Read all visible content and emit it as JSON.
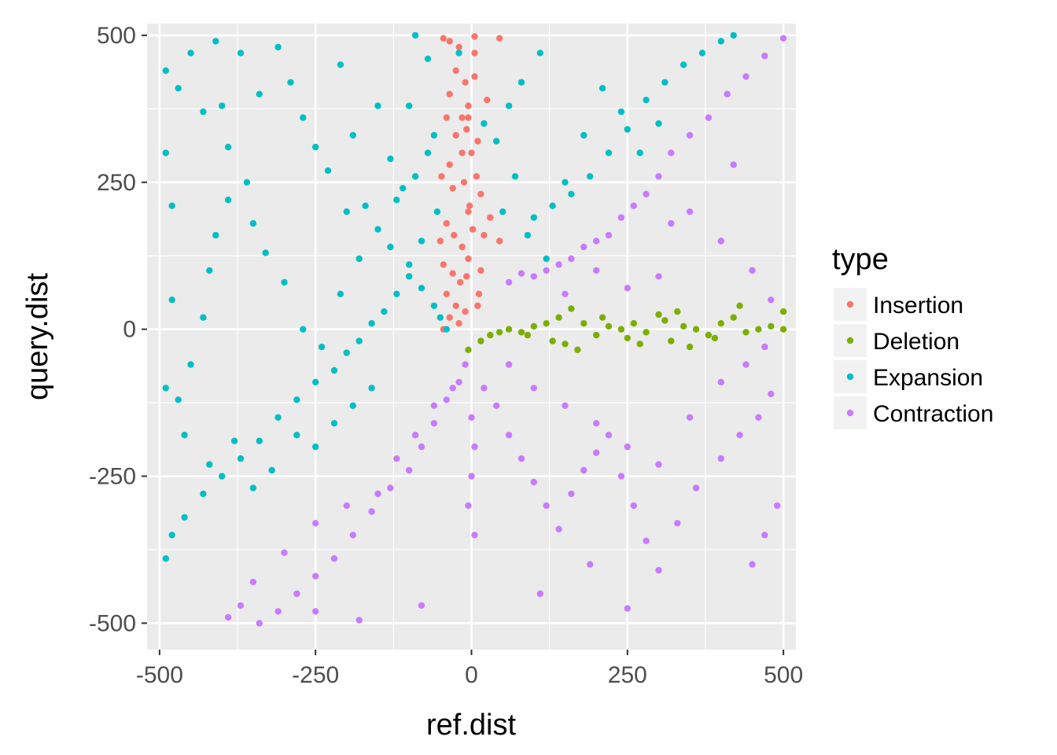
{
  "chart_data": {
    "type": "scatter",
    "title": "",
    "xlabel": "ref.dist",
    "ylabel": "query.dist",
    "xlim": [
      -520,
      520
    ],
    "ylim": [
      -545,
      520
    ],
    "x_ticks": [
      -500,
      -250,
      0,
      250,
      500
    ],
    "y_ticks": [
      -500,
      -250,
      0,
      250,
      500
    ],
    "x_tick_labels": [
      "-500",
      "-250",
      "0",
      "250",
      "500"
    ],
    "y_tick_labels": [
      "-500",
      "-250",
      "0",
      "250",
      "500"
    ],
    "grid": true,
    "panel_background": "#ebebeb",
    "legend": {
      "title": "type",
      "position": "right"
    },
    "series": [
      {
        "name": "Insertion",
        "color": "#f8766d",
        "points": [
          [
            -45,
            495
          ],
          [
            -35,
            490
          ],
          [
            -20,
            480
          ],
          [
            5,
            498
          ],
          [
            45,
            495
          ],
          [
            -25,
            440
          ],
          [
            -35,
            400
          ],
          [
            -10,
            420
          ],
          [
            5,
            430
          ],
          [
            -5,
            380
          ],
          [
            -40,
            360
          ],
          [
            -25,
            330
          ],
          [
            -8,
            340
          ],
          [
            10,
            320
          ],
          [
            -15,
            300
          ],
          [
            -35,
            280
          ],
          [
            -48,
            260
          ],
          [
            -30,
            240
          ],
          [
            -12,
            250
          ],
          [
            15,
            230
          ],
          [
            -5,
            200
          ],
          [
            -40,
            180
          ],
          [
            -28,
            160
          ],
          [
            -50,
            150
          ],
          [
            -15,
            140
          ],
          [
            20,
            160
          ],
          [
            45,
            150
          ],
          [
            30,
            190
          ],
          [
            -5,
            120
          ],
          [
            -45,
            110
          ],
          [
            -30,
            95
          ],
          [
            -18,
            80
          ],
          [
            -40,
            60
          ],
          [
            -25,
            40
          ],
          [
            -10,
            30
          ],
          [
            -35,
            20
          ],
          [
            -20,
            10
          ],
          [
            -45,
            0
          ],
          [
            10,
            40
          ],
          [
            15,
            100
          ],
          [
            5,
            470
          ],
          [
            -5,
            360
          ],
          [
            0,
            300
          ],
          [
            8,
            260
          ],
          [
            -3,
            210
          ],
          [
            2,
            170
          ],
          [
            -8,
            90
          ],
          [
            12,
            60
          ],
          [
            -15,
            360
          ],
          [
            25,
            390
          ]
        ]
      },
      {
        "name": "Deletion",
        "color": "#7cae00",
        "points": [
          [
            -5,
            -35
          ],
          [
            15,
            -20
          ],
          [
            30,
            -10
          ],
          [
            45,
            -5
          ],
          [
            60,
            0
          ],
          [
            80,
            -5
          ],
          [
            100,
            5
          ],
          [
            120,
            10
          ],
          [
            140,
            20
          ],
          [
            160,
            35
          ],
          [
            180,
            10
          ],
          [
            200,
            -10
          ],
          [
            220,
            5
          ],
          [
            240,
            0
          ],
          [
            260,
            10
          ],
          [
            280,
            -5
          ],
          [
            300,
            25
          ],
          [
            320,
            -20
          ],
          [
            340,
            5
          ],
          [
            360,
            0
          ],
          [
            380,
            -10
          ],
          [
            400,
            10
          ],
          [
            420,
            20
          ],
          [
            440,
            -5
          ],
          [
            460,
            0
          ],
          [
            480,
            5
          ],
          [
            500,
            30
          ],
          [
            500,
            0
          ],
          [
            130,
            -20
          ],
          [
            250,
            -15
          ],
          [
            310,
            15
          ],
          [
            350,
            -30
          ],
          [
            150,
            -25
          ],
          [
            90,
            -10
          ],
          [
            170,
            -35
          ],
          [
            210,
            20
          ],
          [
            270,
            -25
          ],
          [
            330,
            30
          ],
          [
            390,
            -15
          ],
          [
            430,
            40
          ]
        ]
      },
      {
        "name": "Expansion",
        "color": "#00bfc4",
        "points": [
          [
            -490,
            440
          ],
          [
            -480,
            210
          ],
          [
            -490,
            300
          ],
          [
            -470,
            410
          ],
          [
            -450,
            470
          ],
          [
            -430,
            370
          ],
          [
            -410,
            490
          ],
          [
            -400,
            380
          ],
          [
            -390,
            310
          ],
          [
            -370,
            470
          ],
          [
            -350,
            180
          ],
          [
            -340,
            400
          ],
          [
            -310,
            480
          ],
          [
            -290,
            420
          ],
          [
            -270,
            360
          ],
          [
            -250,
            310
          ],
          [
            -230,
            270
          ],
          [
            -210,
            450
          ],
          [
            -190,
            330
          ],
          [
            -170,
            210
          ],
          [
            -150,
            380
          ],
          [
            -130,
            290
          ],
          [
            -110,
            240
          ],
          [
            -90,
            500
          ],
          [
            -70,
            460
          ],
          [
            -60,
            330
          ],
          [
            -55,
            200
          ],
          [
            -80,
            150
          ],
          [
            -100,
            90
          ],
          [
            -120,
            60
          ],
          [
            -140,
            30
          ],
          [
            -160,
            10
          ],
          [
            -180,
            -20
          ],
          [
            -200,
            -40
          ],
          [
            -220,
            -70
          ],
          [
            -250,
            -90
          ],
          [
            -280,
            -120
          ],
          [
            -310,
            -150
          ],
          [
            -340,
            -190
          ],
          [
            -370,
            -220
          ],
          [
            -400,
            -250
          ],
          [
            -430,
            -280
          ],
          [
            -460,
            -320
          ],
          [
            -490,
            -390
          ],
          [
            -480,
            -350
          ],
          [
            -470,
            -120
          ],
          [
            -450,
            -60
          ],
          [
            -430,
            20
          ],
          [
            -420,
            100
          ],
          [
            -410,
            160
          ],
          [
            -390,
            220
          ],
          [
            -360,
            250
          ],
          [
            -330,
            130
          ],
          [
            -300,
            80
          ],
          [
            -270,
            0
          ],
          [
            -240,
            -30
          ],
          [
            -210,
            60
          ],
          [
            -180,
            120
          ],
          [
            -150,
            170
          ],
          [
            -120,
            220
          ],
          [
            -90,
            260
          ],
          [
            -70,
            300
          ],
          [
            -50,
            20
          ],
          [
            -40,
            0
          ],
          [
            -60,
            40
          ],
          [
            -80,
            70
          ],
          [
            -100,
            110
          ],
          [
            -130,
            140
          ],
          [
            -160,
            -100
          ],
          [
            -190,
            -130
          ],
          [
            -220,
            -160
          ],
          [
            -250,
            -200
          ],
          [
            -280,
            -180
          ],
          [
            -320,
            -240
          ],
          [
            -350,
            -270
          ],
          [
            -380,
            -190
          ],
          [
            -420,
            -230
          ],
          [
            -460,
            -180
          ],
          [
            -490,
            -100
          ],
          [
            -480,
            50
          ],
          [
            100,
            190
          ],
          [
            130,
            210
          ],
          [
            160,
            230
          ],
          [
            190,
            260
          ],
          [
            220,
            300
          ],
          [
            250,
            340
          ],
          [
            280,
            390
          ],
          [
            310,
            420
          ],
          [
            340,
            450
          ],
          [
            370,
            470
          ],
          [
            400,
            490
          ],
          [
            420,
            500
          ],
          [
            90,
            160
          ],
          [
            120,
            120
          ],
          [
            150,
            250
          ],
          [
            180,
            330
          ],
          [
            210,
            410
          ],
          [
            240,
            370
          ],
          [
            270,
            300
          ],
          [
            300,
            350
          ],
          [
            60,
            380
          ],
          [
            80,
            420
          ],
          [
            110,
            470
          ],
          [
            40,
            320
          ],
          [
            70,
            260
          ],
          [
            50,
            200
          ],
          [
            20,
            350
          ],
          [
            -20,
            470
          ],
          [
            -100,
            380
          ],
          [
            -200,
            200
          ]
        ]
      },
      {
        "name": "Contraction",
        "color": "#c77cff",
        "points": [
          [
            500,
            495
          ],
          [
            470,
            465
          ],
          [
            440,
            430
          ],
          [
            410,
            400
          ],
          [
            380,
            360
          ],
          [
            350,
            330
          ],
          [
            320,
            300
          ],
          [
            300,
            260
          ],
          [
            280,
            230
          ],
          [
            260,
            210
          ],
          [
            240,
            190
          ],
          [
            220,
            160
          ],
          [
            200,
            150
          ],
          [
            180,
            140
          ],
          [
            160,
            120
          ],
          [
            140,
            110
          ],
          [
            120,
            100
          ],
          [
            100,
            90
          ],
          [
            80,
            95
          ],
          [
            60,
            80
          ],
          [
            350,
            200
          ],
          [
            400,
            150
          ],
          [
            450,
            100
          ],
          [
            480,
            50
          ],
          [
            300,
            90
          ],
          [
            250,
            70
          ],
          [
            200,
            100
          ],
          [
            150,
            60
          ],
          [
            320,
            180
          ],
          [
            420,
            280
          ],
          [
            -10,
            -60
          ],
          [
            -20,
            -90
          ],
          [
            -40,
            -120
          ],
          [
            -60,
            -160
          ],
          [
            -80,
            -200
          ],
          [
            -100,
            -240
          ],
          [
            -130,
            -270
          ],
          [
            -160,
            -310
          ],
          [
            -190,
            -350
          ],
          [
            -220,
            -390
          ],
          [
            -250,
            -420
          ],
          [
            -280,
            -450
          ],
          [
            -310,
            -480
          ],
          [
            -340,
            -500
          ],
          [
            -370,
            -470
          ],
          [
            -390,
            -490
          ],
          [
            -350,
            -430
          ],
          [
            -300,
            -380
          ],
          [
            -250,
            -330
          ],
          [
            -200,
            -300
          ],
          [
            -150,
            -280
          ],
          [
            -120,
            -220
          ],
          [
            -90,
            -180
          ],
          [
            -60,
            -130
          ],
          [
            -30,
            -100
          ],
          [
            0,
            -150
          ],
          [
            5,
            -200
          ],
          [
            0,
            -250
          ],
          [
            -5,
            -300
          ],
          [
            5,
            -350
          ],
          [
            20,
            -100
          ],
          [
            40,
            -130
          ],
          [
            60,
            -180
          ],
          [
            80,
            -220
          ],
          [
            100,
            -260
          ],
          [
            120,
            -300
          ],
          [
            140,
            -340
          ],
          [
            160,
            -280
          ],
          [
            180,
            -240
          ],
          [
            200,
            -210
          ],
          [
            220,
            -180
          ],
          [
            240,
            -250
          ],
          [
            260,
            -300
          ],
          [
            280,
            -360
          ],
          [
            300,
            -410
          ],
          [
            330,
            -330
          ],
          [
            360,
            -270
          ],
          [
            400,
            -220
          ],
          [
            430,
            -180
          ],
          [
            460,
            -150
          ],
          [
            480,
            -110
          ],
          [
            490,
            -300
          ],
          [
            470,
            -350
          ],
          [
            450,
            -400
          ],
          [
            250,
            -475
          ],
          [
            190,
            -400
          ],
          [
            110,
            -450
          ],
          [
            -80,
            -470
          ],
          [
            -180,
            -495
          ],
          [
            -250,
            -480
          ],
          [
            60,
            -60
          ],
          [
            100,
            -100
          ],
          [
            150,
            -130
          ],
          [
            200,
            -160
          ],
          [
            250,
            -200
          ],
          [
            300,
            -230
          ],
          [
            350,
            -150
          ],
          [
            400,
            -90
          ],
          [
            440,
            -60
          ],
          [
            470,
            -30
          ]
        ]
      }
    ]
  }
}
